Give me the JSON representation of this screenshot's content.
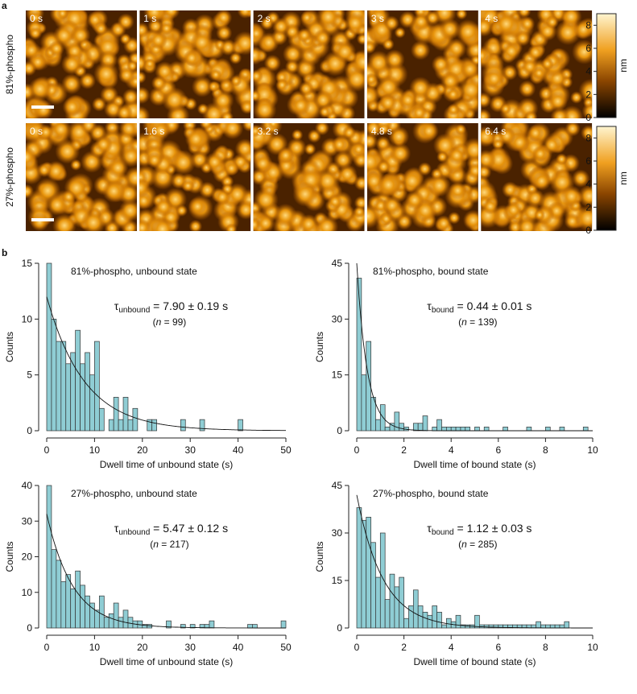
{
  "panel_a": {
    "label": "a",
    "rows": [
      {
        "label": "81%-phospho",
        "times": [
          "0 s",
          "1 s",
          "2 s",
          "3 s",
          "4 s"
        ]
      },
      {
        "label": "27%-phospho",
        "times": [
          "0 s",
          "1.6 s",
          "3.2 s",
          "4.8 s",
          "6.4 s"
        ]
      }
    ],
    "colorbar": {
      "lim": [
        0,
        9
      ],
      "ticks": [
        0,
        2,
        4,
        6,
        8
      ],
      "label": "nm"
    }
  },
  "panel_b": {
    "label": "b"
  },
  "chart_data": [
    {
      "type": "histogram",
      "title": "81%-phospho, unbound state",
      "xlabel": "Dwell time of unbound state (s)",
      "ylabel": "Counts",
      "color": "#8fcdd4",
      "bins": [
        0,
        1,
        2,
        3,
        4,
        5,
        6,
        7,
        8,
        9,
        10,
        11,
        12,
        13,
        14,
        15,
        16,
        17,
        18,
        19,
        20,
        21,
        22,
        23,
        24,
        25,
        26,
        27,
        28,
        29,
        30,
        31,
        32,
        33,
        34,
        35,
        36,
        37,
        38,
        39,
        40,
        41
      ],
      "values": [
        15,
        10,
        8,
        8,
        6,
        7,
        9,
        6,
        7,
        5,
        8,
        2,
        0,
        1,
        3,
        1,
        3,
        1,
        2,
        0,
        0,
        1,
        1,
        0,
        0,
        0,
        0,
        0,
        1,
        0,
        0,
        0,
        1,
        0,
        0,
        0,
        0,
        0,
        0,
        0,
        1
      ],
      "xlim": [
        0,
        50
      ],
      "xticks": [
        0,
        10,
        20,
        30,
        40,
        50
      ],
      "ylim": [
        0,
        15
      ],
      "yticks": [
        0,
        5,
        10,
        15
      ],
      "fit": {
        "amplitude": 12,
        "tau": 7.9
      },
      "tau_text": [
        "τ",
        "unbound",
        " = 7.90 ± 0.19 s"
      ],
      "n_text": [
        "(",
        "n",
        " = 99)"
      ]
    },
    {
      "type": "histogram",
      "title": "81%-phospho, bound state",
      "xlabel": "Dwell time of bound state (s)",
      "ylabel": "Counts",
      "color": "#8fcdd4",
      "bins": [
        0,
        0.2,
        0.4,
        0.6,
        0.8,
        1,
        1.2,
        1.4,
        1.6,
        1.8,
        2,
        2.2,
        2.4,
        2.6,
        2.8,
        3,
        3.2,
        3.4,
        3.6,
        3.8,
        4,
        4.2,
        4.4,
        4.6,
        4.8,
        5,
        5.2,
        5.4,
        5.6,
        5.8,
        6,
        6.2,
        6.4,
        6.6,
        6.8,
        7,
        7.2,
        7.4,
        7.6,
        7.8,
        8,
        8.2,
        8.4,
        8.6,
        8.8,
        9,
        9.2,
        9.4,
        9.6,
        9.8,
        10
      ],
      "values": [
        41,
        15,
        24,
        9,
        3,
        7,
        1,
        2,
        5,
        2,
        1,
        0,
        2,
        2,
        4,
        0,
        1,
        3,
        1,
        1,
        1,
        1,
        1,
        1,
        0,
        1,
        0,
        1,
        0,
        0,
        0,
        1,
        0,
        0,
        0,
        0,
        1,
        0,
        0,
        0,
        1,
        0,
        0,
        1,
        0,
        0,
        0,
        0,
        1,
        0
      ],
      "xlim": [
        0,
        10
      ],
      "xticks": [
        0,
        2,
        4,
        6,
        8,
        10
      ],
      "ylim": [
        0,
        45
      ],
      "yticks": [
        0,
        15,
        30,
        45
      ],
      "fit": {
        "amplitude": 45,
        "tau": 0.44
      },
      "tau_text": [
        "τ",
        "bound",
        " = 0.44 ± 0.01 s"
      ],
      "n_text": [
        "(",
        "n",
        " = 139)"
      ]
    },
    {
      "type": "histogram",
      "title": "27%-phospho, unbound state",
      "xlabel": "Dwell time of unbound state (s)",
      "ylabel": "Counts",
      "color": "#8fcdd4",
      "bins": [
        0,
        1,
        2,
        3,
        4,
        5,
        6,
        7,
        8,
        9,
        10,
        11,
        12,
        13,
        14,
        15,
        16,
        17,
        18,
        19,
        20,
        21,
        22,
        23,
        24,
        25,
        26,
        27,
        28,
        29,
        30,
        31,
        32,
        33,
        34,
        35,
        36,
        37,
        38,
        39,
        40,
        41,
        42,
        43,
        44,
        45,
        46,
        47,
        48,
        49,
        50
      ],
      "values": [
        40,
        22,
        19,
        13,
        15,
        11,
        16,
        12,
        9,
        7,
        5,
        9,
        3,
        4,
        7,
        3,
        5,
        3,
        2,
        2,
        1,
        1,
        0,
        0,
        0,
        2,
        0,
        0,
        1,
        0,
        1,
        0,
        1,
        1,
        2,
        0,
        0,
        0,
        0,
        0,
        0,
        0,
        1,
        1,
        0,
        0,
        0,
        0,
        0,
        2
      ],
      "xlim": [
        0,
        50
      ],
      "xticks": [
        0,
        10,
        20,
        30,
        40,
        50
      ],
      "ylim": [
        0,
        40
      ],
      "yticks": [
        0,
        10,
        20,
        30,
        40
      ],
      "fit": {
        "amplitude": 32,
        "tau": 5.47
      },
      "tau_text": [
        "τ",
        "unbound",
        " = 5.47 ± 0.12 s"
      ],
      "n_text": [
        "(",
        "n",
        " = 217)"
      ]
    },
    {
      "type": "histogram",
      "title": "27%-phospho, bound state",
      "xlabel": "Dwell time of bound state (s)",
      "ylabel": "Counts",
      "color": "#8fcdd4",
      "bins": [
        0,
        0.2,
        0.4,
        0.6,
        0.8,
        1,
        1.2,
        1.4,
        1.6,
        1.8,
        2,
        2.2,
        2.4,
        2.6,
        2.8,
        3,
        3.2,
        3.4,
        3.6,
        3.8,
        4,
        4.2,
        4.4,
        4.6,
        4.8,
        5,
        5.2,
        5.4,
        5.6,
        5.8,
        6,
        6.2,
        6.4,
        6.6,
        6.8,
        7,
        7.2,
        7.4,
        7.6,
        7.8,
        8,
        8.2,
        8.4,
        8.6,
        8.8,
        9,
        9.2,
        9.4,
        9.6,
        9.8,
        10
      ],
      "values": [
        38,
        34,
        35,
        27,
        16,
        30,
        9,
        17,
        13,
        16,
        3,
        7,
        12,
        7,
        5,
        4,
        7,
        5,
        1,
        3,
        2,
        4,
        1,
        1,
        1,
        4,
        1,
        1,
        1,
        1,
        1,
        1,
        1,
        1,
        1,
        1,
        1,
        1,
        2,
        1,
        1,
        1,
        1,
        1,
        2,
        0,
        0,
        0,
        0,
        0
      ],
      "xlim": [
        0,
        10
      ],
      "xticks": [
        0,
        2,
        4,
        6,
        8,
        10
      ],
      "ylim": [
        0,
        45
      ],
      "yticks": [
        0,
        15,
        30,
        45
      ],
      "fit": {
        "amplitude": 42,
        "tau": 1.12
      },
      "tau_text": [
        "τ",
        "bound",
        " = 1.12 ± 0.03 s"
      ],
      "n_text": [
        "(",
        "n",
        " = 285)"
      ]
    }
  ]
}
